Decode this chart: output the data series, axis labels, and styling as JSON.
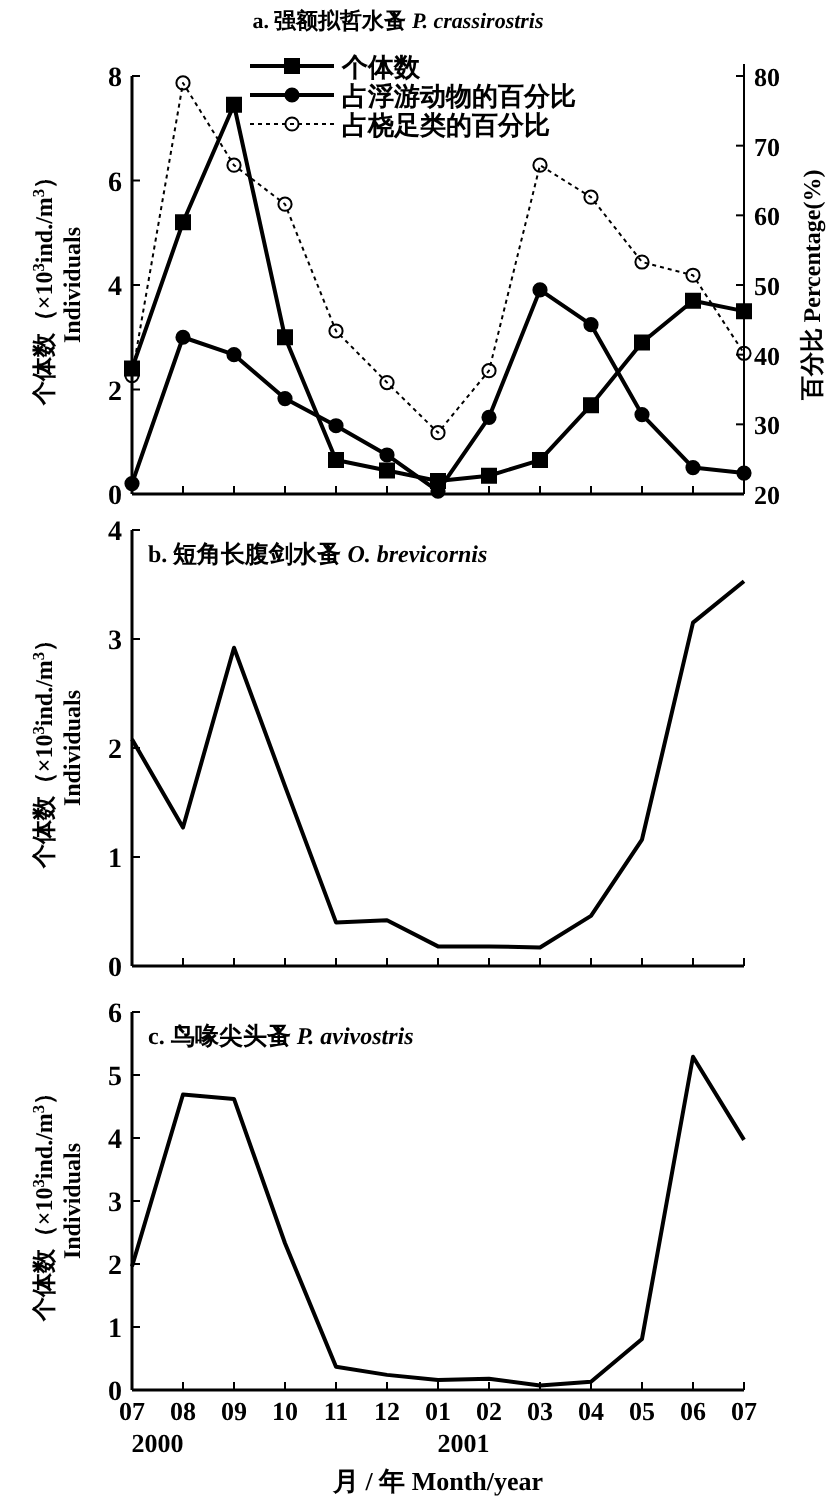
{
  "chart_data": [
    {
      "type": "line",
      "title": "a. 强额拟哲水蚤 *P. crassirostris*",
      "ylabel": "个体数（×10$^{3}$ind./m$^{3}$）\nIndividuals",
      "y2label": "百分比 Percentage(%)",
      "categories": [
        "07",
        "08",
        "09",
        "10",
        "11",
        "12",
        "01",
        "02",
        "03",
        "04",
        "05",
        "06",
        "07"
      ],
      "ylim": [
        0,
        8
      ],
      "yticks": [
        0,
        2,
        4,
        6,
        8
      ],
      "y2lim": [
        20,
        80
      ],
      "y2ticks": [
        20,
        30,
        40,
        50,
        60,
        70,
        80
      ],
      "tick_labels": "y",
      "legend": "top",
      "series": [
        {
          "name": "个体数",
          "color": "#000000",
          "marker": "square",
          "line_style": "solid",
          "values": [
            2.4,
            5.2,
            7.45,
            3.0,
            0.65,
            0.45,
            0.25,
            0.35,
            0.65,
            1.7,
            2.9,
            3.7,
            3.5
          ]
        },
        {
          "name": "占浮游动物的百分比",
          "color": "#000000",
          "marker": "circle",
          "line_style": "solid",
          "axis": "y2",
          "values": [
            21.5,
            42.5,
            40,
            33.7,
            29.8,
            25.6,
            20.4,
            31,
            49.3,
            44.3,
            31.4,
            23.8,
            23
          ]
        },
        {
          "name": "占桡足类的百分比",
          "color": "#000000",
          "marker": "circle",
          "line_style": "dotted",
          "axis": "y2",
          "values": [
            37,
            79,
            67.2,
            61.6,
            43.4,
            36,
            28.8,
            37.7,
            67.2,
            62.6,
            53.3,
            51.4,
            40.2
          ]
        }
      ]
    },
    {
      "type": "line",
      "title": "b. 短角长腹剑水蚤 *O. brevicornis*",
      "ylabel": "个体数（×10$^{3}$ind./m$^{3}$）\nIndividuals",
      "categories": [
        "07",
        "08",
        "09",
        "10",
        "11",
        "12",
        "01",
        "02",
        "03",
        "04",
        "05",
        "06",
        "07"
      ],
      "ylim": [
        0,
        4
      ],
      "yticks": [
        0,
        1,
        2,
        3,
        4
      ],
      "tick_labels": "y",
      "marker": "none",
      "series": [
        {
          "color": "#000000",
          "values": [
            2.08,
            1.27,
            2.92,
            1.65,
            0.4,
            0.42,
            0.18,
            0.18,
            0.17,
            0.46,
            1.16,
            3.15,
            3.53
          ]
        }
      ]
    },
    {
      "type": "line",
      "title": "c. 鸟喙尖头蚤 *P. avivostris*",
      "ylabel": "个体数（×10$^{3}$ind./m$^{3}$）\nIndividuals",
      "xlabel": "月 / 年 Month/year",
      "categories": [
        "07",
        "08",
        "09",
        "10",
        "11",
        "12",
        "01",
        "02",
        "03",
        "04",
        "05",
        "06",
        "07"
      ],
      "ylim": [
        0,
        6
      ],
      "yticks": [
        0,
        1,
        2,
        3,
        4,
        5,
        6
      ],
      "marker": "none",
      "annotations": [
        "2000",
        "2001"
      ],
      "series": [
        {
          "color": "#000000",
          "values": [
            1.96,
            4.69,
            4.62,
            2.33,
            0.37,
            0.24,
            0.16,
            0.18,
            0.07,
            0.13,
            0.81,
            5.29,
            3.97
          ]
        }
      ]
    }
  ]
}
